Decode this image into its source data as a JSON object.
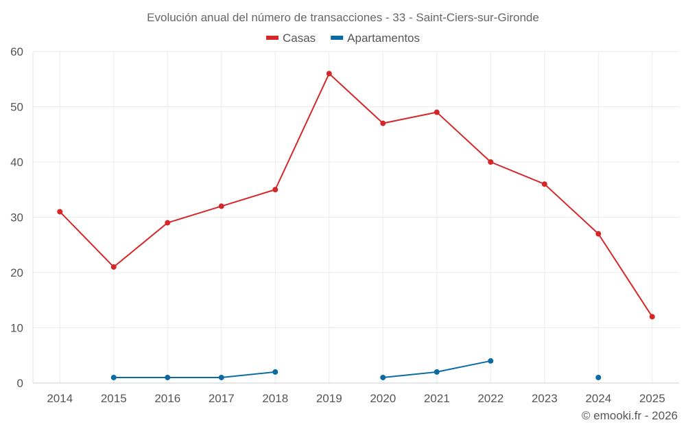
{
  "chart_data": {
    "type": "line",
    "title": "Evolución anual del número de transacciones - 33 - Saint-Ciers-sur-Gironde",
    "xlabel": "",
    "ylabel": "",
    "categories": [
      "2014",
      "2015",
      "2016",
      "2017",
      "2018",
      "2019",
      "2020",
      "2021",
      "2022",
      "2023",
      "2024",
      "2025"
    ],
    "ylim": [
      0,
      60
    ],
    "yticks": [
      0,
      10,
      20,
      30,
      40,
      50,
      60
    ],
    "grid": true,
    "legend_position": "top-center",
    "series": [
      {
        "name": "Casas",
        "color": "#d62728",
        "values": [
          31,
          21,
          29,
          32,
          35,
          56,
          47,
          49,
          40,
          36,
          27,
          12
        ]
      },
      {
        "name": "Apartamentos",
        "color": "#0b6aa2",
        "values": [
          null,
          1,
          1,
          1,
          2,
          null,
          1,
          2,
          4,
          null,
          1,
          null
        ]
      }
    ]
  },
  "credit": "© emooki.fr - 2026"
}
